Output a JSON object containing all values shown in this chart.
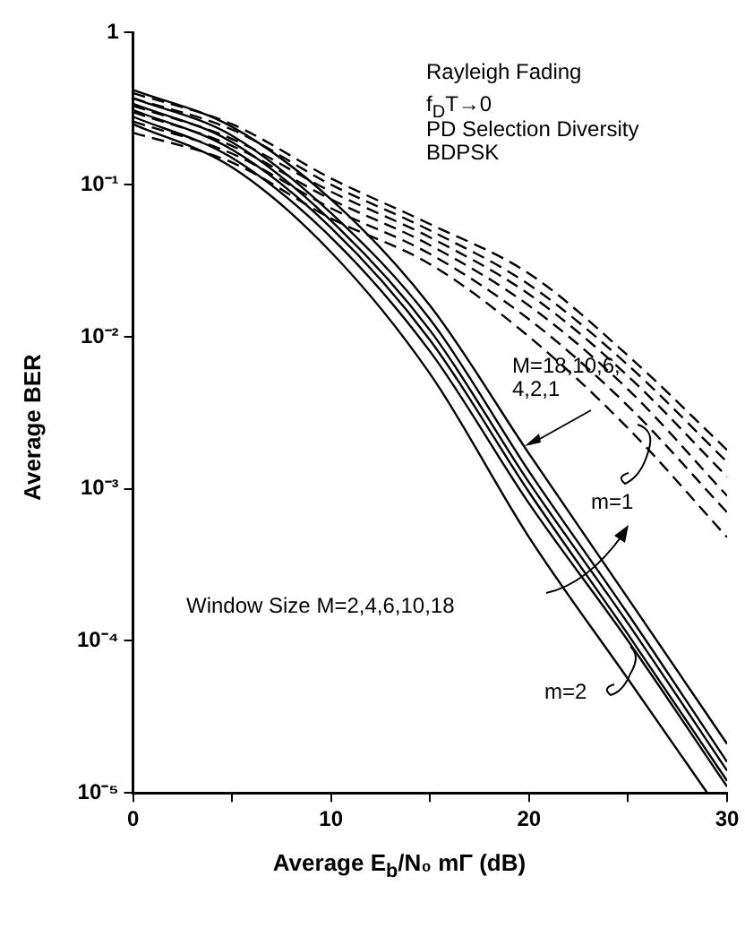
{
  "chart_data": {
    "type": "line",
    "xlabel": "Average E$_{b}$/N₀ mΓ (dB)",
    "ylabel": "Average BER",
    "annotations": [
      "Rayleigh Fading",
      "f$_{D}$T→0",
      "PD Selection Diversity",
      "BDPSK",
      "M=18,10,6, 4,2,1",
      "m=1",
      "Window Size M=2,4,6,10,18",
      "m=2"
    ],
    "x": [
      0,
      5,
      10,
      15,
      20,
      25,
      30
    ],
    "series": [
      {
        "color": "#000000",
        "line_style": "dashed",
        "values": [
          0.22,
          0.14,
          0.06,
          0.03,
          0.01,
          0.0025,
          0.00048
        ]
      },
      {
        "color": "#000000",
        "line_style": "dashed",
        "values": [
          0.26,
          0.16,
          0.07,
          0.035,
          0.013,
          0.0035,
          0.0007
        ]
      },
      {
        "color": "#000000",
        "line_style": "dashed",
        "values": [
          0.3,
          0.18,
          0.08,
          0.04,
          0.016,
          0.0045,
          0.0009
        ]
      },
      {
        "color": "#000000",
        "line_style": "dashed",
        "values": [
          0.33,
          0.2,
          0.09,
          0.045,
          0.019,
          0.0055,
          0.0012
        ]
      },
      {
        "color": "#000000",
        "line_style": "dashed",
        "values": [
          0.37,
          0.23,
          0.1,
          0.05,
          0.022,
          0.0065,
          0.0015
        ]
      },
      {
        "color": "#000000",
        "line_style": "dashed",
        "values": [
          0.4,
          0.25,
          0.11,
          0.055,
          0.026,
          0.0075,
          0.0018
        ]
      },
      {
        "color": "#000000",
        "line_style": "solid",
        "x": [
          0,
          5,
          10,
          15,
          20,
          25,
          29
        ],
        "values": [
          0.25,
          0.13,
          0.036,
          0.0057,
          0.00048,
          5.6e-05,
          1e-05
        ]
      },
      {
        "color": "#000000",
        "line_style": "solid",
        "values": [
          0.28,
          0.15,
          0.045,
          0.008,
          0.0008,
          0.0001,
          1.1e-05
        ]
      },
      {
        "color": "#000000",
        "line_style": "solid",
        "values": [
          0.31,
          0.17,
          0.052,
          0.0095,
          0.00095,
          0.00011,
          1.2e-05
        ]
      },
      {
        "color": "#000000",
        "line_style": "solid",
        "values": [
          0.34,
          0.19,
          0.058,
          0.011,
          0.0011,
          0.00013,
          1.4e-05
        ]
      },
      {
        "color": "#000000",
        "line_style": "solid",
        "values": [
          0.37,
          0.21,
          0.065,
          0.013,
          0.0013,
          0.00015,
          1.6e-05
        ]
      },
      {
        "color": "#000000",
        "line_style": "solid",
        "values": [
          0.42,
          0.24,
          0.08,
          0.016,
          0.0017,
          0.00019,
          2.1e-05
        ]
      }
    ],
    "xlim": [
      0,
      30
    ],
    "xticks": [
      0,
      {
        "value": 5,
        "label": null
      },
      10,
      {
        "value": 15,
        "label": null
      },
      20,
      {
        "value": 25,
        "label": null
      },
      30
    ],
    "ylim": [
      1e-05,
      1
    ],
    "yticks": [
      {
        "value": 1e-05,
        "label": "10⁻⁵"
      },
      {
        "value": 0.0001,
        "label": "10⁻⁴"
      },
      {
        "value": 0.001,
        "label": "10⁻³"
      },
      {
        "value": 0.01,
        "label": "10⁻²"
      },
      {
        "value": 0.1,
        "label": "10⁻¹"
      },
      1
    ],
    "log": "y",
    "grid": false,
    "legend": false,
    "marker": "none"
  }
}
